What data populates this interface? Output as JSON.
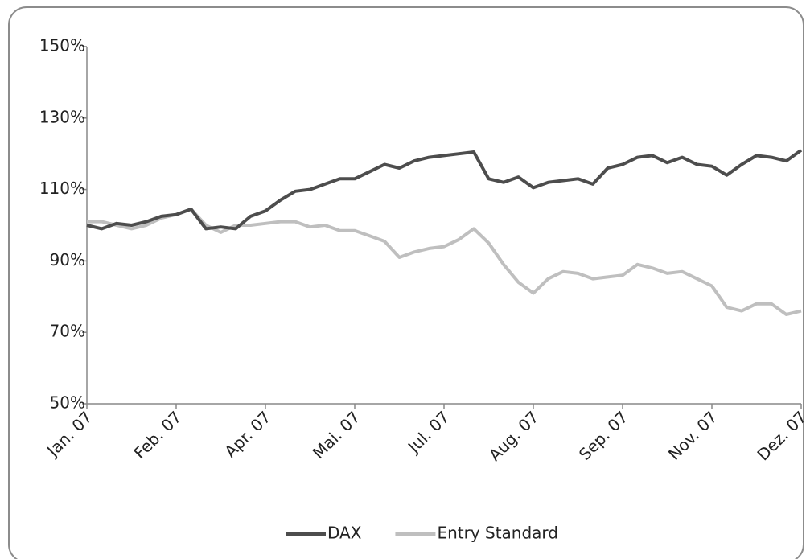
{
  "chart_data": {
    "type": "line",
    "categories": [
      "Jan. 07",
      null,
      null,
      null,
      null,
      null,
      "Feb. 07",
      null,
      null,
      null,
      null,
      null,
      "Apr. 07",
      null,
      null,
      null,
      null,
      null,
      "Mai. 07",
      null,
      null,
      null,
      null,
      null,
      "Jul. 07",
      null,
      null,
      null,
      null,
      null,
      "Aug. 07",
      null,
      null,
      null,
      null,
      null,
      "Sep. 07",
      null,
      null,
      null,
      null,
      null,
      "Nov. 07",
      null,
      null,
      null,
      null,
      null,
      "Dez. 07"
    ],
    "series": [
      {
        "name": "DAX",
        "color": "#4d4d4d",
        "values": [
          100,
          99,
          100.5,
          100,
          101,
          102.5,
          103,
          104.5,
          99,
          99.5,
          99,
          102.5,
          104,
          107,
          109.5,
          110,
          111.5,
          113,
          113,
          115,
          117,
          116,
          118,
          119,
          119.5,
          120,
          120.5,
          113,
          112,
          113.5,
          110.5,
          112,
          112.5,
          113,
          111.5,
          116,
          117,
          119,
          119.5,
          117.5,
          119,
          117,
          116.5,
          114,
          117,
          119.5,
          119,
          118,
          121
        ]
      },
      {
        "name": "Entry Standard",
        "color": "#bfbfbf",
        "values": [
          101,
          101,
          100,
          99,
          100,
          102,
          103,
          104.5,
          100,
          98,
          100,
          100,
          100.5,
          101,
          101,
          99.5,
          100,
          98.5,
          98.5,
          97,
          95.5,
          91,
          92.5,
          93.5,
          94,
          96,
          99,
          95,
          89,
          84,
          81,
          85,
          87,
          86.5,
          85,
          85.5,
          86,
          89,
          88,
          86.5,
          87,
          85,
          83,
          77,
          76,
          78,
          78,
          75,
          76
        ]
      }
    ],
    "ylim": [
      50,
      150
    ],
    "yticks": [
      {
        "value": 50,
        "label": "50%"
      },
      {
        "value": 70,
        "label": "70%"
      },
      {
        "value": 90,
        "label": "90%"
      },
      {
        "value": 110,
        "label": "110%"
      },
      {
        "value": 130,
        "label": "130%"
      },
      {
        "value": 150,
        "label": "150%"
      }
    ],
    "grid": false,
    "legend": "bottom"
  }
}
